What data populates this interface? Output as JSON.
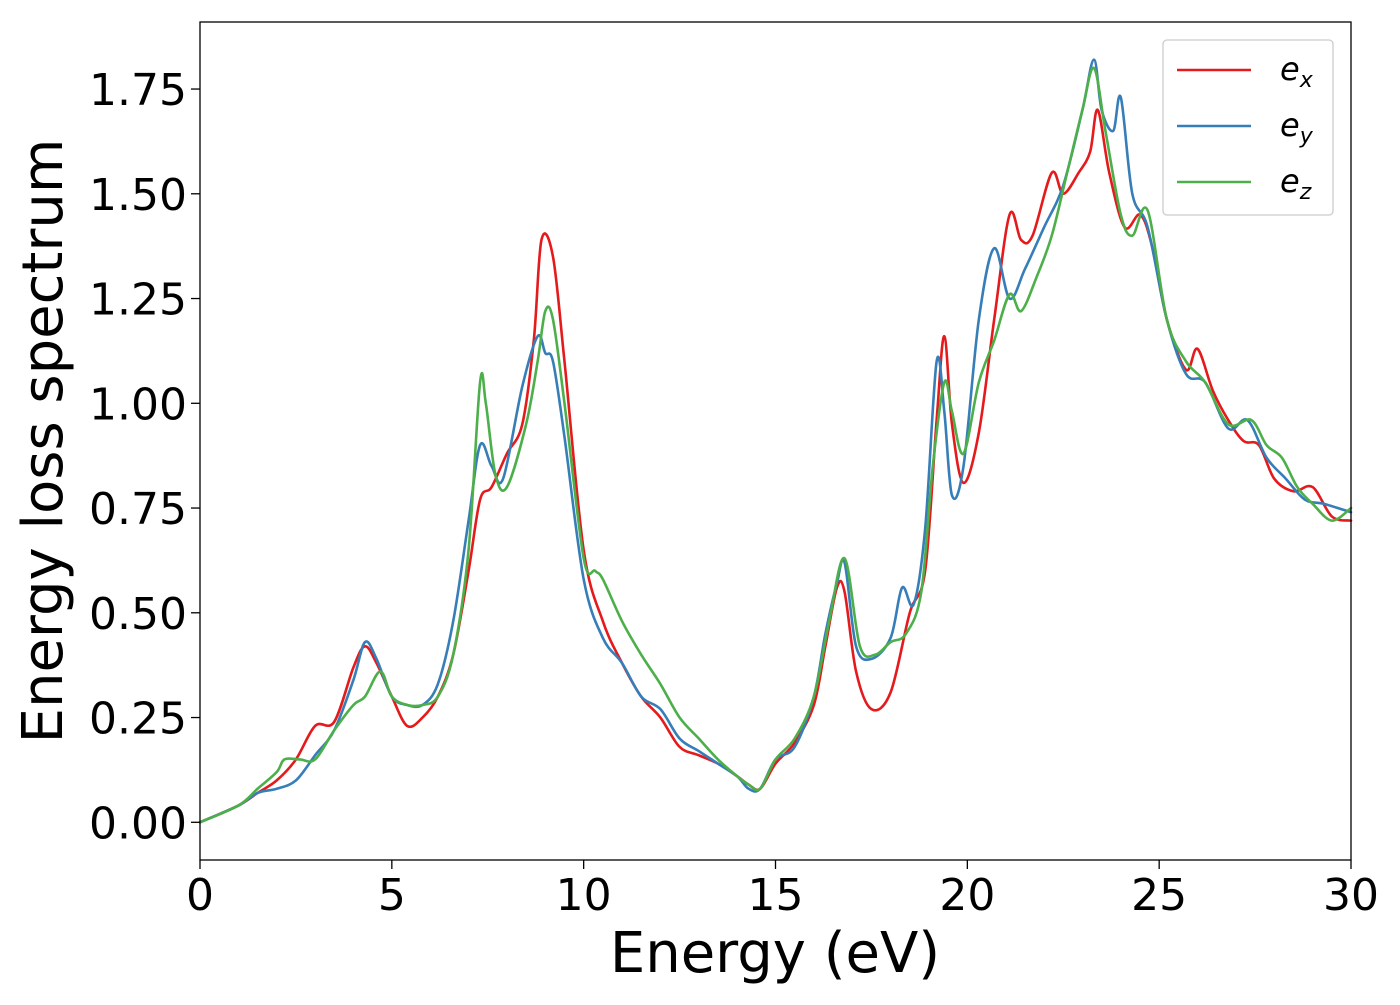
{
  "chart_data": {
    "type": "line",
    "title": "",
    "xlabel": "Energy (eV)",
    "ylabel": "Energy loss spectrum",
    "xlim": [
      0,
      30
    ],
    "ylim": [
      -0.09,
      1.91
    ],
    "xticks": [
      0,
      5,
      10,
      15,
      20,
      25,
      30
    ],
    "xtick_labels": [
      "0",
      "5",
      "10",
      "15",
      "20",
      "25",
      "30"
    ],
    "yticks": [
      0,
      0.25,
      0.5,
      0.75,
      1.0,
      1.25,
      1.5,
      1.75
    ],
    "ytick_labels": [
      "0.00",
      "0.25",
      "0.50",
      "0.75",
      "1.00",
      "1.25",
      "1.50",
      "1.75"
    ],
    "grid": false,
    "legend_position": "top-right",
    "series": [
      {
        "name": "e_x",
        "legend_base": "e",
        "legend_sub": "x",
        "color": "#e41a1c",
        "x": [
          0,
          1,
          1.5,
          2,
          2.5,
          3,
          3.5,
          4,
          4.3,
          4.6,
          5,
          5.4,
          5.8,
          6.2,
          6.6,
          7.0,
          7.3,
          7.6,
          8.0,
          8.4,
          8.7,
          8.9,
          9.2,
          9.5,
          10,
          10.5,
          11,
          11.5,
          12,
          12.5,
          13,
          13.5,
          14,
          14.3,
          14.6,
          15,
          15.5,
          16,
          16.3,
          16.6,
          16.8,
          17.1,
          17.5,
          18,
          18.5,
          18.9,
          19.2,
          19.4,
          19.6,
          19.9,
          20.3,
          20.7,
          21.1,
          21.4,
          21.7,
          22.2,
          22.5,
          22.9,
          23.2,
          23.4,
          23.7,
          24.1,
          24.5,
          24.8,
          25.2,
          25.7,
          26.0,
          26.4,
          26.8,
          27.2,
          27.6,
          28.0,
          28.5,
          29,
          29.5,
          30
        ],
        "y": [
          0.0,
          0.04,
          0.07,
          0.1,
          0.15,
          0.23,
          0.24,
          0.37,
          0.42,
          0.38,
          0.3,
          0.23,
          0.25,
          0.3,
          0.4,
          0.6,
          0.77,
          0.8,
          0.88,
          0.95,
          1.15,
          1.39,
          1.35,
          1.1,
          0.65,
          0.48,
          0.38,
          0.3,
          0.25,
          0.18,
          0.16,
          0.14,
          0.11,
          0.09,
          0.08,
          0.14,
          0.19,
          0.28,
          0.42,
          0.56,
          0.55,
          0.36,
          0.27,
          0.31,
          0.5,
          0.6,
          0.96,
          1.16,
          0.95,
          0.81,
          0.93,
          1.2,
          1.45,
          1.39,
          1.4,
          1.55,
          1.5,
          1.55,
          1.6,
          1.7,
          1.55,
          1.42,
          1.45,
          1.38,
          1.2,
          1.08,
          1.13,
          1.03,
          0.96,
          0.91,
          0.9,
          0.82,
          0.79,
          0.8,
          0.73,
          0.72
        ]
      },
      {
        "name": "e_y",
        "legend_base": "e",
        "legend_sub": "y",
        "color": "#377eb8",
        "x": [
          0,
          1,
          1.5,
          2,
          2.5,
          3,
          3.5,
          4,
          4.3,
          4.6,
          5,
          5.4,
          5.8,
          6.2,
          6.6,
          7.0,
          7.3,
          7.6,
          7.9,
          8.4,
          8.8,
          9.0,
          9.2,
          9.5,
          10,
          10.5,
          11,
          11.5,
          12,
          12.5,
          13,
          13.5,
          14,
          14.3,
          14.6,
          15,
          15.5,
          16,
          16.3,
          16.6,
          16.8,
          17.1,
          17.5,
          18,
          18.3,
          18.6,
          18.9,
          19.2,
          19.4,
          19.6,
          19.9,
          20.3,
          20.7,
          21.1,
          21.5,
          22,
          22.5,
          23.0,
          23.3,
          23.5,
          23.8,
          24.0,
          24.3,
          24.7,
          25.2,
          25.7,
          26.2,
          26.8,
          27.3,
          27.8,
          28.3,
          28.8,
          29.3,
          30
        ],
        "y": [
          0.0,
          0.04,
          0.07,
          0.08,
          0.1,
          0.16,
          0.22,
          0.34,
          0.43,
          0.39,
          0.3,
          0.28,
          0.28,
          0.33,
          0.48,
          0.72,
          0.9,
          0.85,
          0.82,
          1.04,
          1.16,
          1.12,
          1.1,
          0.92,
          0.58,
          0.44,
          0.38,
          0.3,
          0.27,
          0.2,
          0.17,
          0.14,
          0.11,
          0.08,
          0.08,
          0.15,
          0.18,
          0.3,
          0.45,
          0.57,
          0.62,
          0.42,
          0.39,
          0.44,
          0.56,
          0.52,
          0.7,
          1.1,
          0.98,
          0.78,
          0.85,
          1.2,
          1.37,
          1.25,
          1.32,
          1.42,
          1.52,
          1.7,
          1.82,
          1.7,
          1.65,
          1.73,
          1.5,
          1.42,
          1.2,
          1.07,
          1.05,
          0.94,
          0.96,
          0.87,
          0.82,
          0.77,
          0.76,
          0.74
        ]
      },
      {
        "name": "e_z",
        "legend_base": "e",
        "legend_sub": "z",
        "color": "#4daf4a",
        "x": [
          0,
          1,
          1.5,
          2,
          2.2,
          2.6,
          3,
          3.5,
          4,
          4.3,
          4.7,
          5,
          5.4,
          5.8,
          6.2,
          6.6,
          7.0,
          7.3,
          7.45,
          7.7,
          8.0,
          8.5,
          8.8,
          9.0,
          9.2,
          9.5,
          10,
          10.3,
          10.5,
          11,
          11.5,
          12,
          12.5,
          13,
          13.5,
          14,
          14.3,
          14.6,
          15,
          15.5,
          16,
          16.4,
          16.8,
          17.2,
          17.6,
          18,
          18.4,
          18.8,
          19.1,
          19.4,
          19.6,
          19.9,
          20.3,
          20.7,
          21.1,
          21.4,
          21.8,
          22.2,
          22.6,
          23.0,
          23.3,
          23.6,
          24.0,
          24.3,
          24.7,
          25.2,
          25.7,
          26.2,
          26.8,
          27.4,
          27.8,
          28.2,
          28.6,
          29,
          29.5,
          30
        ],
        "y": [
          0.0,
          0.04,
          0.08,
          0.12,
          0.15,
          0.15,
          0.15,
          0.22,
          0.28,
          0.3,
          0.36,
          0.3,
          0.28,
          0.28,
          0.3,
          0.4,
          0.65,
          1.05,
          1.0,
          0.83,
          0.8,
          0.95,
          1.1,
          1.22,
          1.2,
          1.0,
          0.63,
          0.6,
          0.58,
          0.48,
          0.4,
          0.33,
          0.25,
          0.2,
          0.15,
          0.11,
          0.09,
          0.08,
          0.15,
          0.2,
          0.3,
          0.48,
          0.63,
          0.42,
          0.4,
          0.43,
          0.45,
          0.55,
          0.85,
          1.05,
          0.98,
          0.88,
          1.05,
          1.15,
          1.26,
          1.22,
          1.3,
          1.4,
          1.55,
          1.7,
          1.8,
          1.65,
          1.45,
          1.4,
          1.46,
          1.2,
          1.1,
          1.05,
          0.95,
          0.96,
          0.9,
          0.87,
          0.8,
          0.76,
          0.72,
          0.75
        ]
      }
    ]
  }
}
